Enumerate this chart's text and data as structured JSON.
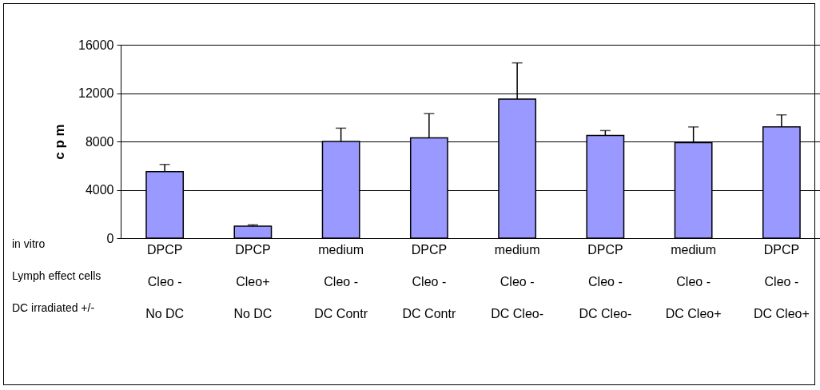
{
  "chart_data": {
    "type": "bar",
    "ylabel": "c p m",
    "categories": [
      "DPCP\nCleo -\nNo DC",
      "DPCP\nCleo+\nNo DC",
      "medium\nCleo -\nDC Contr",
      "DPCP\nCleo -\nDC Contr",
      "medium\nCleo -\nDC Cleo-",
      "DPCP\nCleo -\nDC Cleo-",
      "medium\nCleo -\nDC Cleo+",
      "DPCP\nCleo -\nDC Cleo+"
    ],
    "values": [
      5500,
      1000,
      8000,
      8300,
      11500,
      8500,
      7900,
      9200
    ],
    "errors": [
      [
        5500,
        6100
      ],
      [
        1000,
        1100
      ],
      [
        8000,
        9100
      ],
      [
        8300,
        10300
      ],
      [
        11500,
        14500
      ],
      [
        8500,
        8900
      ],
      [
        7900,
        9200
      ],
      [
        9200,
        10200
      ]
    ],
    "color": "#9999ff",
    "ylim": [
      0,
      16000
    ],
    "yticks": [
      0,
      4000,
      8000,
      12000,
      16000
    ],
    "grid": "y",
    "annotations": [
      "in vitro",
      "Lymph effect cells",
      "DC irradiated +/-"
    ]
  }
}
